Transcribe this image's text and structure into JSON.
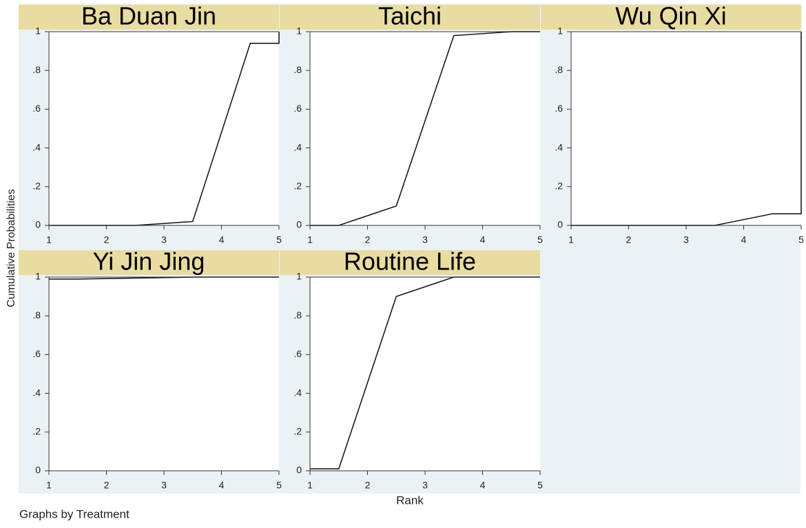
{
  "ylabel": "Cumulative Probabilities",
  "xlabel": "Rank",
  "note": "Graphs by Treatment",
  "chart_data": [
    {
      "type": "line",
      "title": "Ba Duan Jin",
      "x": [
        1,
        1.5,
        2.5,
        3.5,
        4.5,
        5,
        5
      ],
      "values": [
        0,
        0,
        0,
        0.02,
        0.94,
        0.94,
        1
      ],
      "color": "#1a1a1a",
      "xlim": [
        1,
        5
      ],
      "ylim": [
        0,
        1
      ],
      "xticks": [
        1,
        2,
        3,
        4,
        5
      ],
      "yticks": [
        0,
        {
          "value": 0.2,
          "label": ".2"
        },
        {
          "value": 0.4,
          "label": ".4"
        },
        {
          "value": 0.6,
          "label": ".6"
        },
        {
          "value": 0.8,
          "label": ".8"
        },
        1
      ]
    },
    {
      "type": "line",
      "title": "Taichi",
      "x": [
        1,
        1.5,
        2.5,
        3.5,
        4.5,
        5,
        5
      ],
      "values": [
        0,
        0,
        0.1,
        0.98,
        1,
        1,
        1
      ],
      "color": "#1a1a1a",
      "xlim": [
        1,
        5
      ],
      "ylim": [
        0,
        1
      ],
      "xticks": [
        1,
        2,
        3,
        4,
        5
      ],
      "yticks": [
        0,
        {
          "value": 0.2,
          "label": ".2"
        },
        {
          "value": 0.4,
          "label": ".4"
        },
        {
          "value": 0.6,
          "label": ".6"
        },
        {
          "value": 0.8,
          "label": ".8"
        },
        1
      ]
    },
    {
      "type": "line",
      "title": "Wu Qin Xi",
      "x": [
        1,
        1.5,
        2.5,
        3.5,
        4.5,
        5,
        5
      ],
      "values": [
        0,
        0,
        0,
        0,
        0.06,
        0.06,
        1
      ],
      "color": "#1a1a1a",
      "xlim": [
        1,
        5
      ],
      "ylim": [
        0,
        1
      ],
      "xticks": [
        1,
        2,
        3,
        4,
        5
      ],
      "yticks": [
        0,
        {
          "value": 0.2,
          "label": ".2"
        },
        {
          "value": 0.4,
          "label": ".4"
        },
        {
          "value": 0.6,
          "label": ".6"
        },
        {
          "value": 0.8,
          "label": ".8"
        },
        1
      ]
    },
    {
      "type": "line",
      "title": "Yi Jin Jing",
      "x": [
        1,
        1.5,
        2.5,
        3.5,
        4.5,
        5,
        5
      ],
      "values": [
        0.99,
        0.99,
        0.995,
        1,
        1,
        1,
        1
      ],
      "color": "#1a1a1a",
      "xlim": [
        1,
        5
      ],
      "ylim": [
        0,
        1
      ],
      "xticks": [
        1,
        2,
        3,
        4,
        5
      ],
      "yticks": [
        0,
        {
          "value": 0.2,
          "label": ".2"
        },
        {
          "value": 0.4,
          "label": ".4"
        },
        {
          "value": 0.6,
          "label": ".6"
        },
        {
          "value": 0.8,
          "label": ".8"
        },
        1
      ]
    },
    {
      "type": "line",
      "title": "Routine Life",
      "x": [
        1,
        1.5,
        2.5,
        3.5,
        4.5,
        5,
        5
      ],
      "values": [
        0.01,
        0.01,
        0.9,
        1,
        1,
        1,
        1
      ],
      "color": "#1a1a1a",
      "xlim": [
        1,
        5
      ],
      "ylim": [
        0,
        1
      ],
      "xticks": [
        1,
        2,
        3,
        4,
        5
      ],
      "yticks": [
        0,
        {
          "value": 0.2,
          "label": ".2"
        },
        {
          "value": 0.4,
          "label": ".4"
        },
        {
          "value": 0.6,
          "label": ".6"
        },
        {
          "value": 0.8,
          "label": ".8"
        },
        1
      ]
    }
  ]
}
